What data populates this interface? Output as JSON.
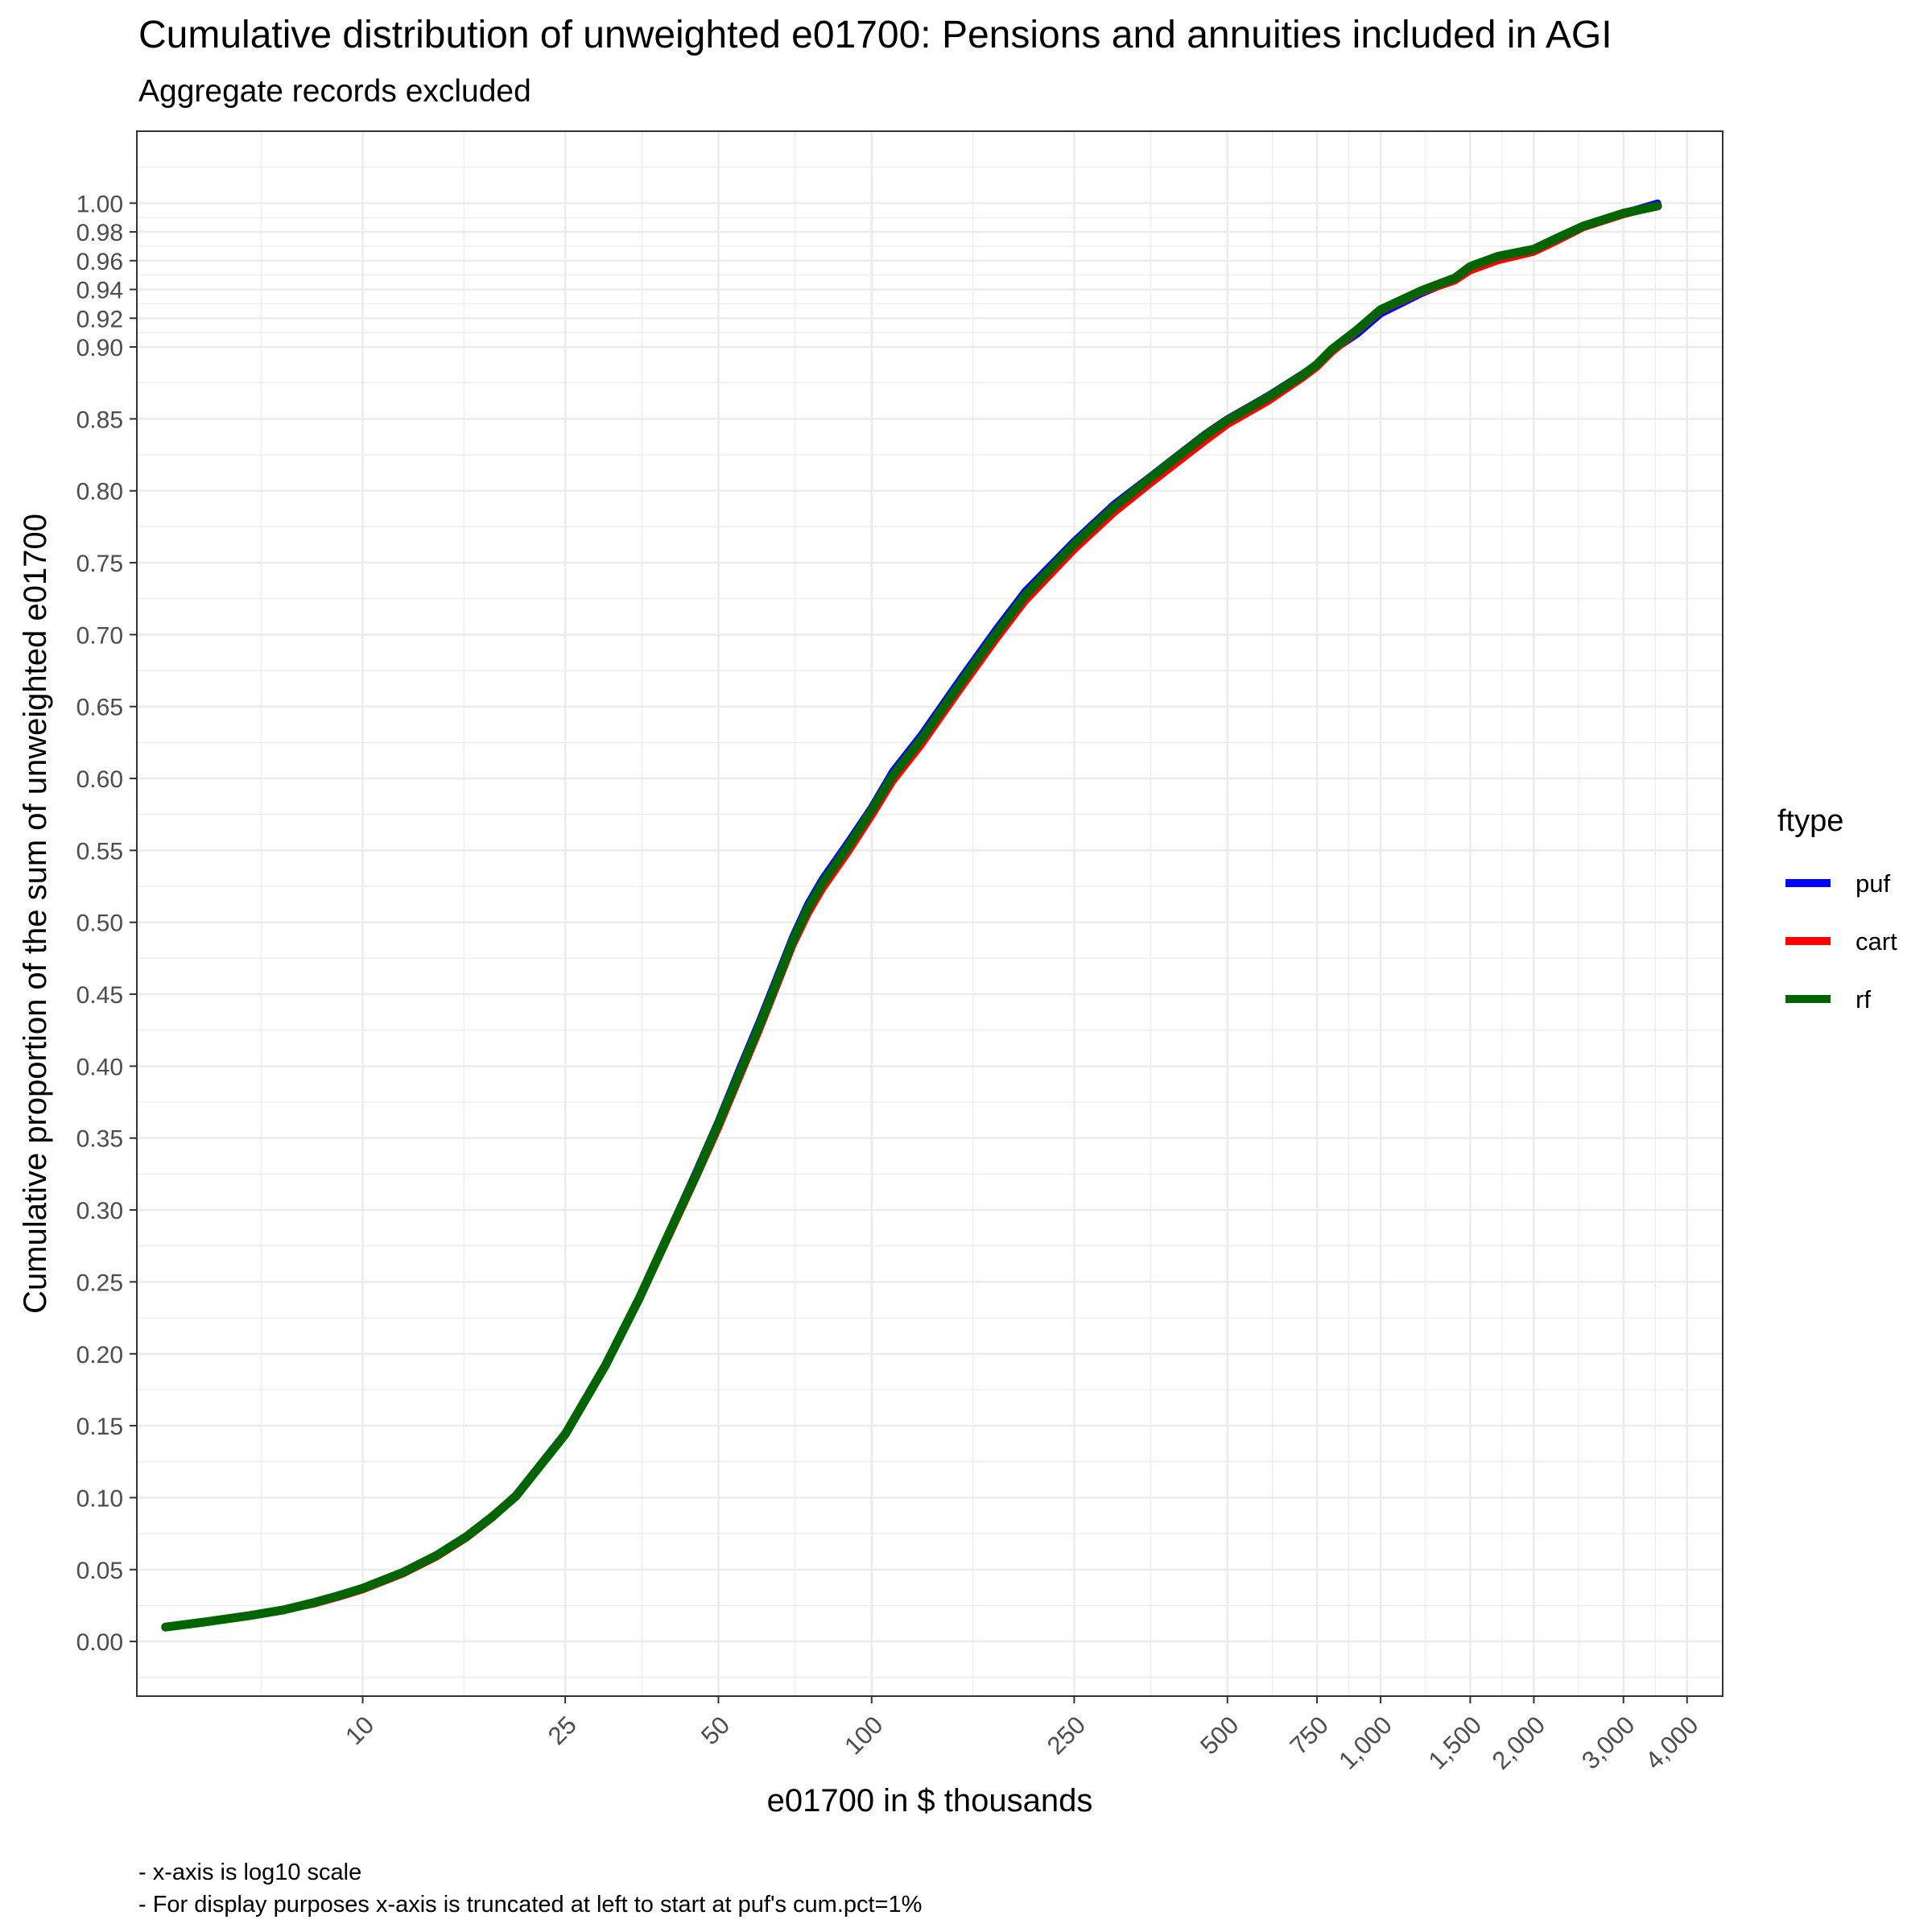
{
  "title": "Cumulative distribution of unweighted e01700: Pensions and annuities included in AGI",
  "subtitle": "Aggregate records excluded",
  "captions": [
    "- x-axis is log10 scale",
    "- For display purposes x-axis is truncated at left to start at puf's cum.pct=1%"
  ],
  "colors": {
    "puf": "#0000ff",
    "cart": "#ff0000",
    "rf": "#006400",
    "grid": "#ebebeb",
    "panel_border": "#333333"
  },
  "chart_data": {
    "type": "line",
    "xlabel": "e01700 in $ thousands",
    "ylabel": "Cumulative proportion of the sum of unweighted e01700",
    "x_scale": "log10",
    "xlim": [
      3.6,
      4700
    ],
    "ylim": [
      -0.038,
      1.05
    ],
    "x_ticks": [
      10,
      25,
      50,
      100,
      250,
      500,
      750,
      1000,
      1500,
      2000,
      3000,
      4000
    ],
    "x_tick_labels": [
      "10",
      "25",
      "50",
      "100",
      "250",
      "500",
      "750",
      "1,000",
      "1,500",
      "2,000",
      "3,000",
      "4,000"
    ],
    "y_ticks": [
      0,
      0.05,
      0.1,
      0.15,
      0.2,
      0.25,
      0.3,
      0.35,
      0.4,
      0.45,
      0.5,
      0.55,
      0.6,
      0.65,
      0.7,
      0.75,
      0.8,
      0.85,
      0.9,
      0.92,
      0.94,
      0.96,
      0.98,
      1.0
    ],
    "y_tick_labels": [
      "0.00",
      "0.05",
      "0.10",
      "0.15",
      "0.20",
      "0.25",
      "0.30",
      "0.35",
      "0.40",
      "0.45",
      "0.50",
      "0.55",
      "0.60",
      "0.65",
      "0.70",
      "0.75",
      "0.80",
      "0.85",
      "0.90",
      "0.92",
      "0.94",
      "0.96",
      "0.98",
      "1.00"
    ],
    "grid": true,
    "legend": {
      "title": "ftype",
      "position": "right"
    },
    "series": [
      {
        "name": "puf",
        "x": [
          4.1,
          5,
          6,
          7,
          8,
          9,
          10,
          12,
          14,
          16,
          18,
          20,
          25,
          30,
          35,
          40,
          45,
          50,
          55,
          60,
          65,
          70,
          75,
          80,
          90,
          100,
          110,
          125,
          150,
          175,
          200,
          250,
          300,
          350,
          400,
          450,
          500,
          600,
          700,
          750,
          800,
          900,
          1000,
          1200,
          1400,
          1500,
          1700,
          2000,
          2200,
          2500,
          3000,
          3500
        ],
        "y": [
          0.01,
          0.014,
          0.018,
          0.022,
          0.027,
          0.032,
          0.037,
          0.048,
          0.06,
          0.073,
          0.087,
          0.102,
          0.145,
          0.193,
          0.24,
          0.285,
          0.325,
          0.362,
          0.398,
          0.43,
          0.461,
          0.49,
          0.513,
          0.53,
          0.556,
          0.58,
          0.605,
          0.63,
          0.67,
          0.703,
          0.73,
          0.765,
          0.791,
          0.809,
          0.825,
          0.839,
          0.85,
          0.866,
          0.881,
          0.888,
          0.897,
          0.909,
          0.923,
          0.937,
          0.947,
          0.955,
          0.962,
          0.967,
          0.975,
          0.984,
          0.993,
          1.0
        ]
      },
      {
        "name": "cart",
        "x": [
          4.1,
          5,
          6,
          7,
          8,
          9,
          10,
          12,
          14,
          16,
          18,
          20,
          25,
          30,
          35,
          40,
          45,
          50,
          55,
          60,
          65,
          70,
          75,
          80,
          90,
          100,
          110,
          125,
          150,
          175,
          200,
          250,
          300,
          350,
          400,
          450,
          500,
          600,
          700,
          750,
          800,
          900,
          1000,
          1200,
          1400,
          1500,
          1700,
          2000,
          2200,
          2500,
          3000,
          3500
        ],
        "y": [
          0.01,
          0.014,
          0.018,
          0.022,
          0.026,
          0.031,
          0.036,
          0.047,
          0.059,
          0.072,
          0.086,
          0.101,
          0.144,
          0.192,
          0.238,
          0.282,
          0.321,
          0.357,
          0.392,
          0.424,
          0.455,
          0.484,
          0.506,
          0.523,
          0.549,
          0.574,
          0.598,
          0.623,
          0.663,
          0.696,
          0.723,
          0.759,
          0.785,
          0.804,
          0.82,
          0.834,
          0.846,
          0.862,
          0.878,
          0.886,
          0.896,
          0.911,
          0.925,
          0.938,
          0.946,
          0.953,
          0.96,
          0.966,
          0.973,
          0.983,
          0.992,
          0.998
        ]
      },
      {
        "name": "rf",
        "x": [
          4.1,
          5,
          6,
          7,
          8,
          9,
          10,
          12,
          14,
          16,
          18,
          20,
          25,
          30,
          35,
          40,
          45,
          50,
          55,
          60,
          65,
          70,
          75,
          80,
          90,
          100,
          110,
          125,
          150,
          175,
          200,
          250,
          300,
          350,
          400,
          450,
          500,
          600,
          700,
          750,
          800,
          900,
          1000,
          1200,
          1400,
          1500,
          1700,
          2000,
          2200,
          2500,
          3000,
          3500
        ],
        "y": [
          0.01,
          0.014,
          0.018,
          0.022,
          0.027,
          0.032,
          0.037,
          0.048,
          0.06,
          0.073,
          0.087,
          0.101,
          0.144,
          0.192,
          0.239,
          0.284,
          0.323,
          0.36,
          0.395,
          0.427,
          0.458,
          0.487,
          0.51,
          0.527,
          0.553,
          0.578,
          0.602,
          0.627,
          0.667,
          0.7,
          0.727,
          0.763,
          0.789,
          0.808,
          0.824,
          0.838,
          0.849,
          0.865,
          0.88,
          0.888,
          0.898,
          0.912,
          0.926,
          0.939,
          0.948,
          0.956,
          0.963,
          0.968,
          0.975,
          0.984,
          0.993,
          0.998
        ]
      }
    ]
  }
}
